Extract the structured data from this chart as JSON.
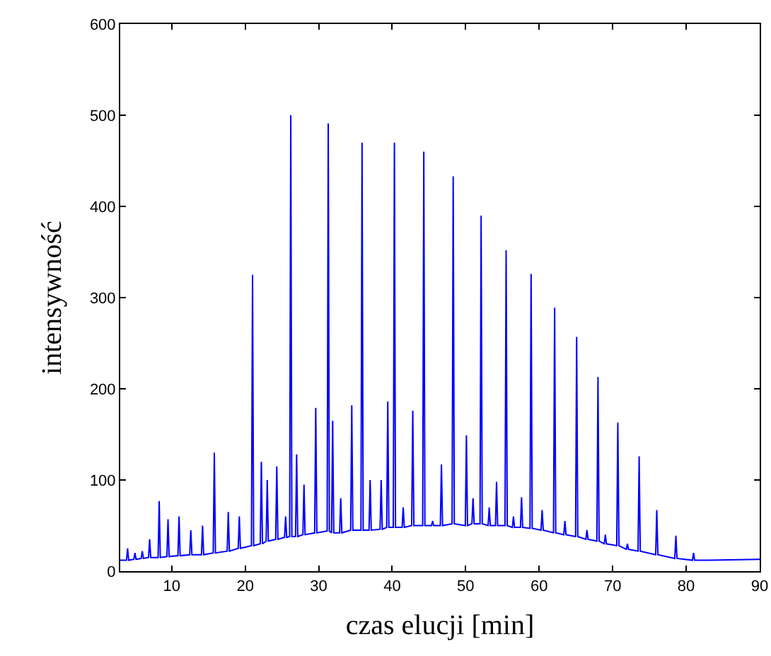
{
  "chart_data": {
    "type": "line",
    "xlabel": "czas elucji [min]",
    "ylabel": "intensywność",
    "x": [
      3,
      3.85,
      4,
      4.15,
      4.85,
      5,
      5.15,
      5.85,
      6,
      6.15,
      6.85,
      7,
      7.15,
      8.15,
      8.3,
      8.45,
      9.35,
      9.5,
      9.65,
      10.85,
      11,
      11.15,
      12.45,
      12.6,
      12.75,
      14.05,
      14.2,
      14.35,
      15.65,
      15.8,
      15.95,
      17.55,
      17.7,
      17.85,
      19.05,
      19.2,
      19.35,
      20.85,
      21,
      21.15,
      22.05,
      22.2,
      22.35,
      22.85,
      23,
      23.15,
      24.15,
      24.3,
      24.45,
      25.35,
      25.5,
      25.65,
      26.05,
      26.2,
      26.35,
      26.85,
      27,
      27.15,
      27.85,
      28,
      28.15,
      29.45,
      29.6,
      29.75,
      31.15,
      31.3,
      31.45,
      31.75,
      31.9,
      32.05,
      32.85,
      33,
      33.15,
      34.35,
      34.5,
      34.65,
      35.75,
      35.9,
      36.05,
      36.85,
      37,
      37.15,
      38.35,
      38.5,
      38.65,
      39.25,
      39.4,
      39.55,
      40.15,
      40.3,
      40.45,
      41.35,
      41.5,
      41.65,
      42.65,
      42.8,
      42.95,
      44.15,
      44.3,
      44.45,
      45.35,
      45.5,
      45.65,
      46.55,
      46.7,
      46.85,
      48.15,
      48.3,
      48.45,
      49.95,
      50.1,
      50.25,
      50.85,
      51,
      51.15,
      51.95,
      52.1,
      52.25,
      53.05,
      53.2,
      53.35,
      54.05,
      54.2,
      54.35,
      55.35,
      55.5,
      55.65,
      56.35,
      56.5,
      56.65,
      57.45,
      57.6,
      57.75,
      58.75,
      58.9,
      59.05,
      60.25,
      60.4,
      60.55,
      61.95,
      62.1,
      62.25,
      63.35,
      63.5,
      63.65,
      64.95,
      65.1,
      65.25,
      66.35,
      66.5,
      66.65,
      67.85,
      68,
      68.15,
      68.85,
      69,
      69.15,
      70.55,
      70.7,
      70.85,
      71.85,
      72,
      72.15,
      73.45,
      73.6,
      73.75,
      75.85,
      76,
      76.15,
      78.45,
      78.6,
      78.75,
      80.85,
      81,
      81.15,
      83,
      90
    ],
    "series": [
      {
        "color": "#0000ff",
        "values": [
          12,
          12,
          25,
          12,
          13,
          20,
          13,
          14,
          22,
          14,
          15,
          35,
          15,
          15,
          77,
          15,
          16,
          57,
          16,
          17,
          60,
          17,
          18,
          45,
          18,
          18,
          50,
          18,
          20,
          130,
          20,
          22,
          65,
          22,
          25,
          60,
          25,
          28,
          325,
          28,
          30,
          120,
          30,
          33,
          100,
          33,
          35,
          115,
          35,
          37,
          60,
          37,
          38,
          500,
          38,
          38,
          128,
          38,
          40,
          95,
          40,
          42,
          179,
          42,
          44,
          491,
          44,
          42,
          165,
          42,
          42,
          80,
          42,
          45,
          182,
          45,
          45,
          470,
          45,
          45,
          100,
          45,
          46,
          100,
          46,
          48,
          186,
          48,
          48,
          470,
          48,
          48,
          70,
          48,
          50,
          176,
          50,
          50,
          460,
          50,
          50,
          55,
          50,
          50,
          117,
          50,
          52,
          433,
          52,
          50,
          149,
          50,
          52,
          80,
          52,
          52,
          390,
          52,
          50,
          70,
          50,
          50,
          98,
          50,
          50,
          352,
          50,
          48,
          60,
          48,
          48,
          81,
          48,
          47,
          326,
          47,
          45,
          67,
          45,
          42,
          289,
          42,
          40,
          55,
          40,
          38,
          257,
          38,
          35,
          45,
          35,
          33,
          213,
          33,
          30,
          40,
          30,
          28,
          163,
          28,
          24,
          30,
          24,
          22,
          126,
          22,
          18,
          67,
          18,
          14,
          39,
          14,
          12,
          20,
          12,
          12,
          13
        ]
      }
    ],
    "xlim": [
      3,
      90
    ],
    "xticks": [
      10,
      20,
      30,
      40,
      50,
      60,
      70,
      80,
      90
    ],
    "ylim": [
      0,
      600
    ],
    "yticks": [
      0,
      100,
      200,
      300,
      400,
      500,
      600
    ],
    "grid": false,
    "marker": "none",
    "line_style": "solid"
  }
}
